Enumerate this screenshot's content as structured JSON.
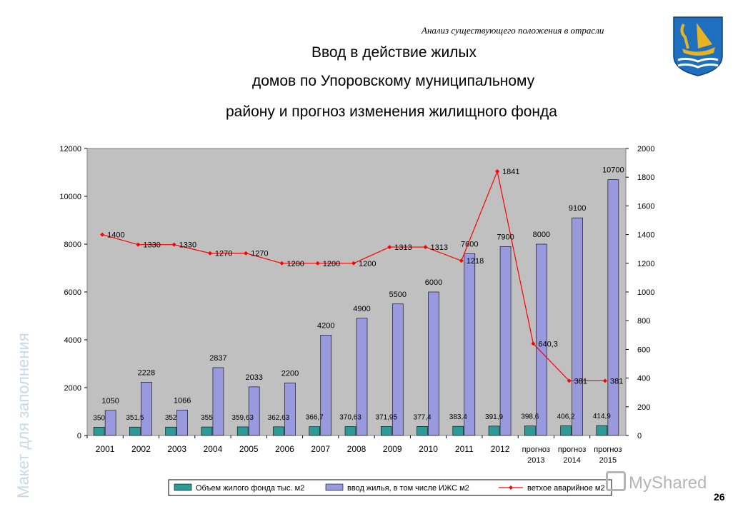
{
  "header_note": "Анализ существующего положения в отрасли",
  "title_lines": [
    "Ввод в действие жилых",
    "домов по Упоровскому муниципальному",
    "району и прогноз изменения жилищного фонда"
  ],
  "watermark": "Макет для заполнения",
  "page_number": "26",
  "logo_text": "MyShared",
  "colors": {
    "plot_bg": "#c0c0c0",
    "series1": "#2e9a98",
    "series2": "#9999dd",
    "line": "#ff0000",
    "crest_blue": "#1f6fbf",
    "crest_gold": "#e6b422"
  },
  "chart_data": {
    "type": "bar",
    "categories": [
      "2001",
      "2002",
      "2003",
      "2004",
      "2005",
      "2006",
      "2007",
      "2008",
      "2009",
      "2010",
      "2011",
      "2012",
      "прогноз 2013",
      "прогноз 2014",
      "прогноз 2015"
    ],
    "series": [
      {
        "name": "Объем жилого фонда тыс. м2",
        "axis": "left",
        "type": "bar",
        "values": [
          350,
          351.5,
          352,
          355,
          359.63,
          362.63,
          366.7,
          370.63,
          371.95,
          377.4,
          383.4,
          391.9,
          398.6,
          406.2,
          414.9
        ],
        "labels": [
          "350",
          "351,5",
          "352",
          "355",
          "359,63",
          "362,63",
          "366,7",
          "370,63",
          "371,95",
          "377,4",
          "383,4",
          "391,9",
          "398,6",
          "406,2",
          "414,9"
        ]
      },
      {
        "name": "ввод жилья, в том числе ИЖС м2",
        "axis": "left",
        "type": "bar",
        "values": [
          1050,
          2228,
          1066,
          2837,
          2033,
          2200,
          4200,
          4900,
          5500,
          6000,
          7600,
          7900,
          8000,
          9100,
          10700
        ],
        "labels": [
          "1050",
          "2228",
          "1066",
          "2837",
          "2033",
          "2200",
          "4200",
          "4900",
          "5500",
          "6000",
          "7600",
          "7900",
          "8000",
          "9100",
          "10700"
        ]
      },
      {
        "name": "ветхое аварийное м2",
        "axis": "right",
        "type": "line",
        "values": [
          1400,
          1330,
          1330,
          1270,
          1270,
          1200,
          1200,
          1200,
          1313,
          1313,
          1218,
          1841,
          640.3,
          381,
          381
        ],
        "labels": [
          "1400",
          "1330",
          "1330",
          "1270",
          "1270",
          "1200",
          "1200",
          "1200",
          "1313",
          "1313",
          "1218",
          "1841",
          "640,3",
          "381",
          "381"
        ]
      }
    ],
    "ylim_left": [
      0,
      12000
    ],
    "yticks_left": [
      "0",
      "2000",
      "4000",
      "6000",
      "8000",
      "10000",
      "12000"
    ],
    "ylim_right": [
      0,
      2000
    ],
    "yticks_right": [
      "0",
      "200",
      "400",
      "600",
      "800",
      "1000",
      "1200",
      "1400",
      "1600",
      "1800",
      "2000"
    ],
    "grid": false,
    "legend_position": "bottom"
  }
}
